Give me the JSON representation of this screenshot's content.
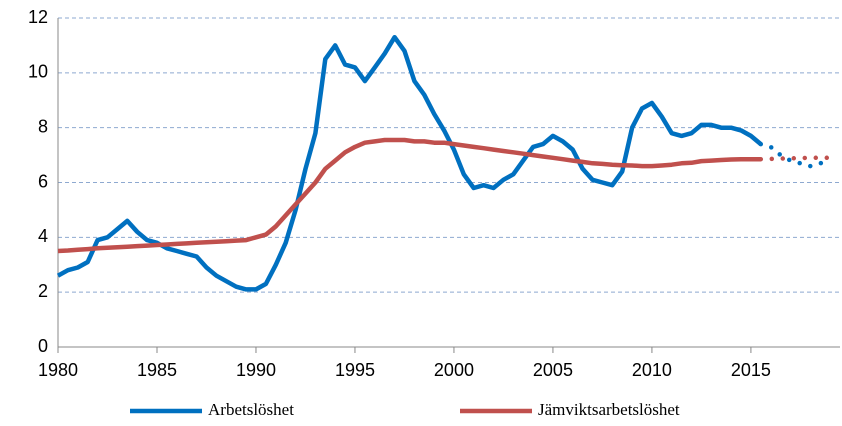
{
  "chart_data": {
    "type": "line",
    "x": [
      1980,
      1980.5,
      1981,
      1981.5,
      1982,
      1982.5,
      1983,
      1983.5,
      1984,
      1984.5,
      1985,
      1985.5,
      1986,
      1986.5,
      1987,
      1987.5,
      1988,
      1988.5,
      1989,
      1989.5,
      1990,
      1990.5,
      1991,
      1991.5,
      1992,
      1992.5,
      1993,
      1993.5,
      1994,
      1994.5,
      1995,
      1995.5,
      1996,
      1996.5,
      1997,
      1997.5,
      1998,
      1998.5,
      1999,
      1999.5,
      2000,
      2000.5,
      2001,
      2001.5,
      2002,
      2002.5,
      2003,
      2003.5,
      2004,
      2004.5,
      2005,
      2005.5,
      2006,
      2006.5,
      2007,
      2007.5,
      2008,
      2008.5,
      2009,
      2009.5,
      2010,
      2010.5,
      2011,
      2011.5,
      2012,
      2012.5,
      2013,
      2013.5,
      2014,
      2014.5,
      2015,
      2015.5,
      2016,
      2016.5,
      2017,
      2017.5,
      2018,
      2018.5,
      2019
    ],
    "series": [
      {
        "name": "Arbetslöshet",
        "color": "#0070c0",
        "values": [
          2.6,
          2.8,
          2.9,
          3.1,
          3.9,
          4.0,
          4.3,
          4.6,
          4.2,
          3.9,
          3.8,
          3.6,
          3.5,
          3.4,
          3.3,
          2.9,
          2.6,
          2.4,
          2.2,
          2.1,
          2.1,
          2.3,
          3.0,
          3.8,
          5.0,
          6.5,
          7.8,
          10.5,
          11.0,
          10.3,
          10.2,
          9.7,
          10.2,
          10.7,
          11.3,
          10.8,
          9.7,
          9.2,
          8.5,
          7.9,
          7.2,
          6.3,
          5.8,
          5.9,
          5.8,
          6.1,
          6.3,
          6.8,
          7.3,
          7.4,
          7.7,
          7.5,
          7.2,
          6.5,
          6.1,
          6.0,
          5.9,
          6.4,
          8.0,
          8.7,
          8.9,
          8.4,
          7.8,
          7.7,
          7.8,
          8.1,
          8.1,
          8.0,
          8.0,
          7.9,
          7.7,
          7.4,
          null,
          null,
          null,
          null,
          null,
          null,
          null
        ],
        "forecast_values": [
          null,
          null,
          null,
          null,
          null,
          null,
          null,
          null,
          null,
          null,
          null,
          null,
          null,
          null,
          null,
          null,
          null,
          null,
          null,
          null,
          null,
          null,
          null,
          null,
          null,
          null,
          null,
          null,
          null,
          null,
          null,
          null,
          null,
          null,
          null,
          null,
          null,
          null,
          null,
          null,
          null,
          null,
          null,
          null,
          null,
          null,
          null,
          null,
          null,
          null,
          null,
          null,
          null,
          null,
          null,
          null,
          null,
          null,
          null,
          null,
          null,
          null,
          null,
          null,
          null,
          null,
          null,
          null,
          null,
          null,
          null,
          7.4,
          7.3,
          7.0,
          6.8,
          6.7,
          6.6,
          6.7,
          6.8
        ]
      },
      {
        "name": "Jämviktsarbetslöshet",
        "color": "#c0504d",
        "values": [
          3.5,
          3.52,
          3.55,
          3.57,
          3.6,
          3.62,
          3.64,
          3.66,
          3.68,
          3.7,
          3.72,
          3.74,
          3.76,
          3.78,
          3.8,
          3.82,
          3.84,
          3.86,
          3.88,
          3.9,
          4.0,
          4.1,
          4.4,
          4.8,
          5.2,
          5.6,
          6.0,
          6.5,
          6.8,
          7.1,
          7.3,
          7.45,
          7.5,
          7.55,
          7.55,
          7.55,
          7.5,
          7.5,
          7.45,
          7.45,
          7.4,
          7.35,
          7.3,
          7.25,
          7.2,
          7.15,
          7.1,
          7.05,
          7.0,
          6.95,
          6.9,
          6.85,
          6.8,
          6.75,
          6.7,
          6.68,
          6.65,
          6.63,
          6.62,
          6.6,
          6.6,
          6.62,
          6.65,
          6.7,
          6.72,
          6.78,
          6.8,
          6.82,
          6.84,
          6.85,
          6.85,
          6.85,
          null,
          null,
          null,
          null,
          null,
          null,
          null
        ],
        "forecast_values": [
          null,
          null,
          null,
          null,
          null,
          null,
          null,
          null,
          null,
          null,
          null,
          null,
          null,
          null,
          null,
          null,
          null,
          null,
          null,
          null,
          null,
          null,
          null,
          null,
          null,
          null,
          null,
          null,
          null,
          null,
          null,
          null,
          null,
          null,
          null,
          null,
          null,
          null,
          null,
          null,
          null,
          null,
          null,
          null,
          null,
          null,
          null,
          null,
          null,
          null,
          null,
          null,
          null,
          null,
          null,
          null,
          null,
          null,
          null,
          null,
          null,
          null,
          null,
          null,
          null,
          null,
          null,
          null,
          null,
          null,
          null,
          6.85,
          6.86,
          6.87,
          6.88,
          6.89,
          6.9,
          6.9,
          6.9
        ]
      }
    ],
    "forecast_style": "dotted",
    "xlim": [
      1980,
      2019.5
    ],
    "xticks": [
      1980,
      1985,
      1990,
      1995,
      2000,
      2005,
      2010,
      2015
    ],
    "ylim": [
      0,
      12
    ],
    "yticks": [
      0,
      2,
      4,
      6,
      8,
      10,
      12
    ],
    "grid": true,
    "legend": "bottom"
  }
}
